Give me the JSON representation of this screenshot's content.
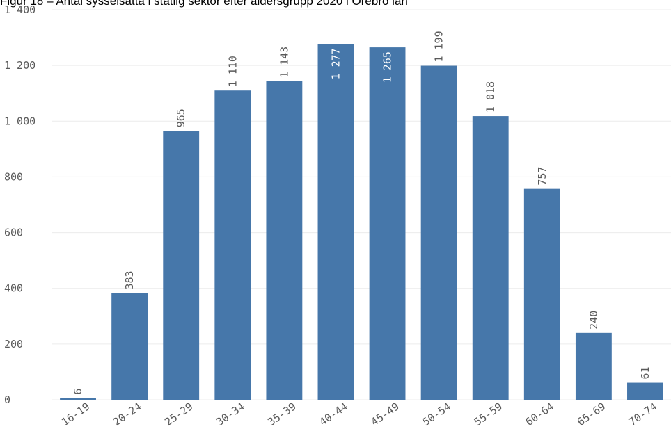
{
  "chart_data": {
    "type": "bar",
    "title": "Figur 18 – Antal sysselsatta i statlig sektor efter åldersgrupp 2020 i Örebro län",
    "xlabel": "",
    "ylabel": "",
    "categories": [
      "16-19",
      "20-24",
      "25-29",
      "30-34",
      "35-39",
      "40-44",
      "45-49",
      "50-54",
      "55-59",
      "60-64",
      "65-69",
      "70-74"
    ],
    "values": [
      6,
      383,
      965,
      1110,
      1143,
      1277,
      1265,
      1199,
      1018,
      757,
      240,
      61
    ],
    "value_labels": [
      "6",
      "383",
      "965",
      "1 110",
      "1 143",
      "1 277",
      "1 265",
      "1 199",
      "1 018",
      "757",
      "240",
      "61"
    ],
    "ylim": [
      0,
      1400
    ],
    "y_ticks": [
      0,
      200,
      400,
      600,
      800,
      1000,
      1200,
      1400
    ],
    "y_tick_labels": [
      "0",
      "200",
      "400",
      "600",
      "800",
      "1 000",
      "1 200",
      "1 400"
    ],
    "grid": true,
    "legend": "none",
    "colors": {
      "bar": "#4677aa",
      "grid": "#ececec",
      "label_outside": "#595959",
      "label_inside": "#ffffff"
    }
  }
}
